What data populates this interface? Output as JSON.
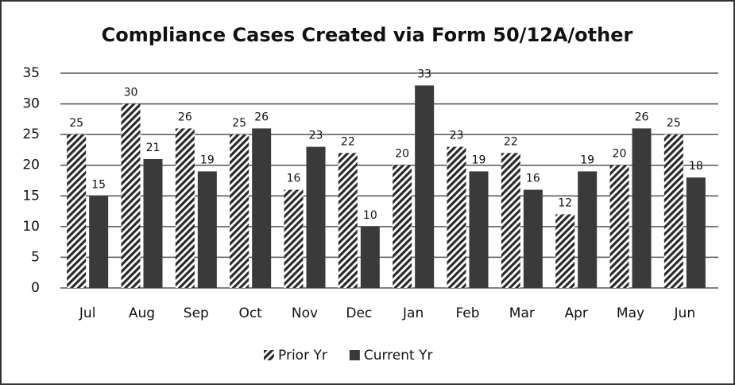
{
  "chart_data": {
    "type": "bar",
    "title": "Compliance Cases Created via Form 50/12A/other",
    "categories": [
      "Jul",
      "Aug",
      "Sep",
      "Oct",
      "Nov",
      "Dec",
      "Jan",
      "Feb",
      "Mar",
      "Apr",
      "May",
      "Jun"
    ],
    "series": [
      {
        "name": "Prior Yr",
        "color": "#2a2a2a",
        "hatch": true,
        "values": [
          25,
          30,
          26,
          25,
          16,
          22,
          20,
          23,
          22,
          12,
          20,
          25
        ]
      },
      {
        "name": "Current Yr",
        "color": "#3a3a3a",
        "hatch": false,
        "values": [
          15,
          21,
          19,
          26,
          23,
          10,
          33,
          19,
          16,
          19,
          26,
          18
        ]
      }
    ],
    "ylim": [
      0,
      35
    ],
    "yticks": [
      0,
      5,
      10,
      15,
      20,
      25,
      30,
      35
    ],
    "grid": true,
    "legend": "bottom"
  }
}
